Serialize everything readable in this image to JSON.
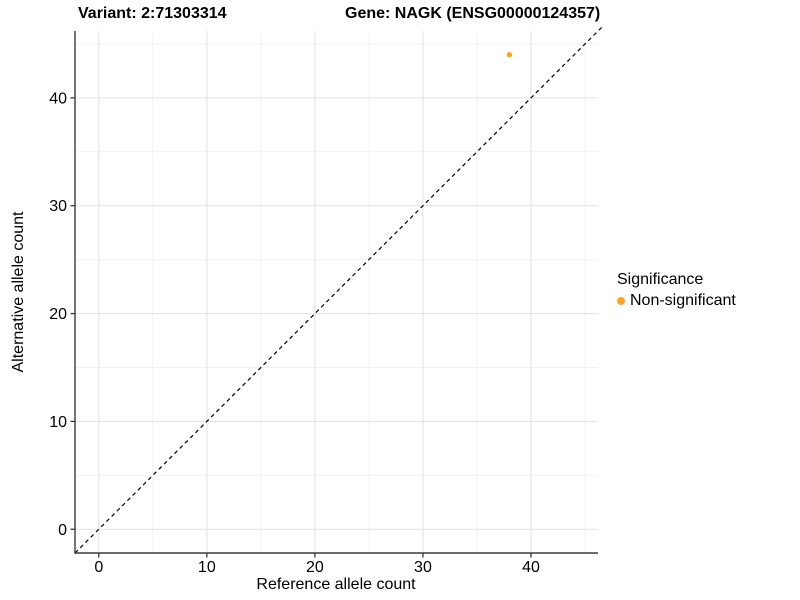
{
  "header": {
    "variant_title": "Variant: 2:71303314",
    "gene_title": "Gene: NAGK (ENSG00000124357)"
  },
  "chart_data": {
    "type": "scatter",
    "title": "Variant: 2:71303314   Gene: NAGK (ENSG00000124357)",
    "xlabel": "Reference allele count",
    "ylabel": "Alternative allele count",
    "xlim": [
      -2.2,
      46.2
    ],
    "ylim": [
      -2.2,
      46.2
    ],
    "x_ticks": [
      0,
      10,
      20,
      30,
      40
    ],
    "x_tick_labels": [
      "0",
      "10",
      "20",
      "30",
      "40"
    ],
    "y_ticks": [
      0,
      10,
      20,
      30,
      40
    ],
    "y_tick_labels": [
      "0",
      "10",
      "20",
      "30",
      "40"
    ],
    "x_minor_ticks": [
      5,
      15,
      25,
      35,
      45
    ],
    "y_minor_ticks": [
      5,
      15,
      25,
      35,
      45
    ],
    "grid": true,
    "legend_position": "right",
    "series": [
      {
        "name": "Non-significant",
        "color": "#FCA32C",
        "points": [
          {
            "x": 38,
            "y": 44
          }
        ]
      }
    ],
    "reference_line": {
      "type": "identity",
      "equation": "y = x",
      "style": "dashed",
      "color": "#000000"
    },
    "legend": {
      "title": "Significance",
      "entries": [
        {
          "label": "Non-significant",
          "color": "#FCA32C"
        }
      ]
    }
  },
  "colors": {
    "background": "#ffffff",
    "major_grid": "#e4e4e4",
    "minor_grid": "#f1f1f1",
    "axis_line": "#3c3c3c",
    "tick_mark": "#333333",
    "text": "#000000",
    "point_orange": "#FCA32C"
  }
}
